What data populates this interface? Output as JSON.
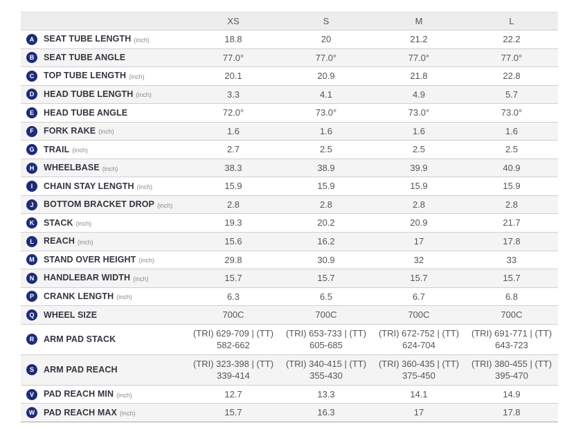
{
  "table": {
    "columns": [
      "XS",
      "S",
      "M",
      "L"
    ],
    "rows": [
      {
        "letter": "A",
        "label": "SEAT TUBE LENGTH",
        "unit": "(inch)",
        "values": [
          "18.8",
          "20",
          "21.2",
          "22.2"
        ]
      },
      {
        "letter": "B",
        "label": "SEAT TUBE ANGLE",
        "unit": "",
        "values": [
          "77.0°",
          "77.0°",
          "77.0°",
          "77.0°"
        ]
      },
      {
        "letter": "C",
        "label": "TOP TUBE LENGTH",
        "unit": "(inch)",
        "values": [
          "20.1",
          "20.9",
          "21.8",
          "22.8"
        ]
      },
      {
        "letter": "D",
        "label": "HEAD TUBE LENGTH",
        "unit": "(inch)",
        "values": [
          "3.3",
          "4.1",
          "4.9",
          "5.7"
        ]
      },
      {
        "letter": "E",
        "label": "HEAD TUBE ANGLE",
        "unit": "",
        "values": [
          "72.0°",
          "73.0°",
          "73.0°",
          "73.0°"
        ]
      },
      {
        "letter": "F",
        "label": "FORK RAKE",
        "unit": "(inch)",
        "values": [
          "1.6",
          "1.6",
          "1.6",
          "1.6"
        ]
      },
      {
        "letter": "G",
        "label": "TRAIL",
        "unit": "(inch)",
        "values": [
          "2.7",
          "2.5",
          "2.5",
          "2.5"
        ]
      },
      {
        "letter": "H",
        "label": "WHEELBASE",
        "unit": "(inch)",
        "values": [
          "38.3",
          "38.9",
          "39.9",
          "40.9"
        ]
      },
      {
        "letter": "I",
        "label": "CHAIN STAY LENGTH",
        "unit": "(inch)",
        "values": [
          "15.9",
          "15.9",
          "15.9",
          "15.9"
        ]
      },
      {
        "letter": "J",
        "label": "BOTTOM BRACKET DROP",
        "unit": "(inch)",
        "values": [
          "2.8",
          "2.8",
          "2.8",
          "2.8"
        ]
      },
      {
        "letter": "K",
        "label": "STACK",
        "unit": "(inch)",
        "values": [
          "19.3",
          "20.2",
          "20.9",
          "21.7"
        ]
      },
      {
        "letter": "L",
        "label": "REACH",
        "unit": "(inch)",
        "values": [
          "15.6",
          "16.2",
          "17",
          "17.8"
        ]
      },
      {
        "letter": "M",
        "label": "STAND OVER HEIGHT",
        "unit": "(inch)",
        "values": [
          "29.8",
          "30.9",
          "32",
          "33"
        ]
      },
      {
        "letter": "N",
        "label": "HANDLEBAR WIDTH",
        "unit": "(inch)",
        "values": [
          "15.7",
          "15.7",
          "15.7",
          "15.7"
        ]
      },
      {
        "letter": "P",
        "label": "CRANK LENGTH",
        "unit": "(inch)",
        "values": [
          "6.3",
          "6.5",
          "6.7",
          "6.8"
        ]
      },
      {
        "letter": "Q",
        "label": "WHEEL SIZE",
        "unit": "",
        "values": [
          "700C",
          "700C",
          "700C",
          "700C"
        ]
      },
      {
        "letter": "R",
        "label": "ARM PAD STACK",
        "unit": "",
        "values": [
          "(TRI) 629-709 | (TT) 582-662",
          "(TRI) 653-733 | (TT) 605-685",
          "(TRI) 672-752 | (TT) 624-704",
          "(TRI) 691-771 | (TT) 643-723"
        ]
      },
      {
        "letter": "S",
        "label": "ARM PAD REACH",
        "unit": "",
        "values": [
          "(TRI) 323-398 | (TT) 339-414",
          "(TRI) 340-415 | (TT) 355-430",
          "(TRI) 360-435 | (TT) 375-450",
          "(TRI) 380-455 | (TT) 395-470"
        ]
      },
      {
        "letter": "V",
        "label": "PAD REACH MIN",
        "unit": "(inch)",
        "values": [
          "12.7",
          "13.3",
          "14.1",
          "14.9"
        ]
      },
      {
        "letter": "W",
        "label": "PAD REACH MAX",
        "unit": "(inch)",
        "values": [
          "15.7",
          "16.3",
          "17",
          "17.8"
        ]
      }
    ]
  },
  "colors": {
    "badge": "#1e2b7a",
    "header_bg": "#ededed",
    "stripe_bg": "#f4f4f4",
    "border": "#cfcfcf",
    "label_text": "#34343f",
    "value_text": "#555555"
  }
}
